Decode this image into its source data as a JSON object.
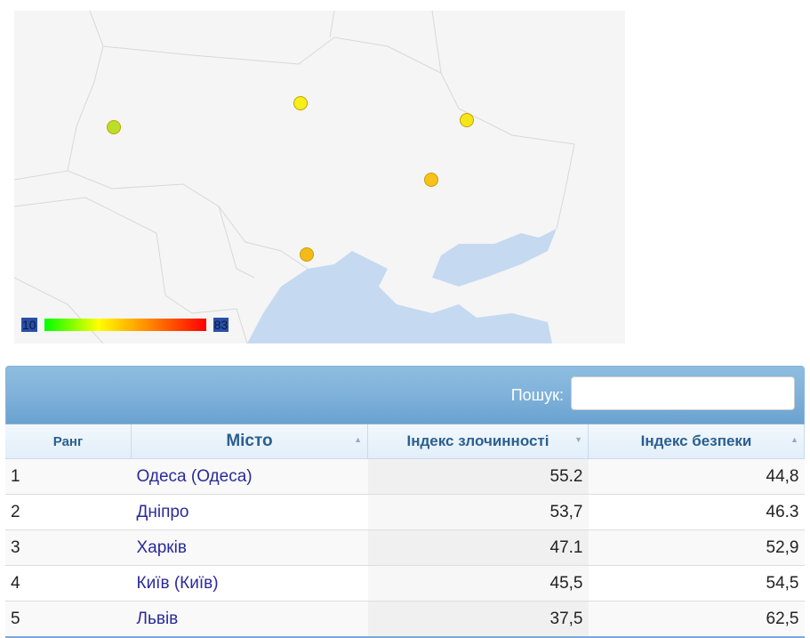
{
  "map": {
    "legend": {
      "min": "10",
      "max": "83"
    },
    "markers": [
      {
        "city": "Львів",
        "color": "#b8e02a"
      },
      {
        "city": "Київ",
        "color": "#f5ef1a"
      },
      {
        "city": "Харків",
        "color": "#f5e61a"
      },
      {
        "city": "Дніпро",
        "color": "#f5c11a"
      },
      {
        "city": "Одеса",
        "color": "#f5b91a"
      }
    ]
  },
  "table": {
    "search_label": "Пошук:",
    "search_value": "",
    "headers": [
      "Ранг",
      "Місто",
      "Індекс злочинності",
      "Індекс безпеки"
    ],
    "rows": [
      {
        "rank": "1",
        "city": "Одеса (Одеса)",
        "crime": "55.2",
        "safety": "44,8"
      },
      {
        "rank": "2",
        "city": "Дніпро",
        "crime": "53,7",
        "safety": "46.3"
      },
      {
        "rank": "3",
        "city": "Харків",
        "crime": "47.1",
        "safety": "52,9"
      },
      {
        "rank": "4",
        "city": "Київ (Київ)",
        "crime": "45,5",
        "safety": "54,5"
      },
      {
        "rank": "5",
        "city": "Львів",
        "crime": "37,5",
        "safety": "62,5"
      }
    ]
  }
}
